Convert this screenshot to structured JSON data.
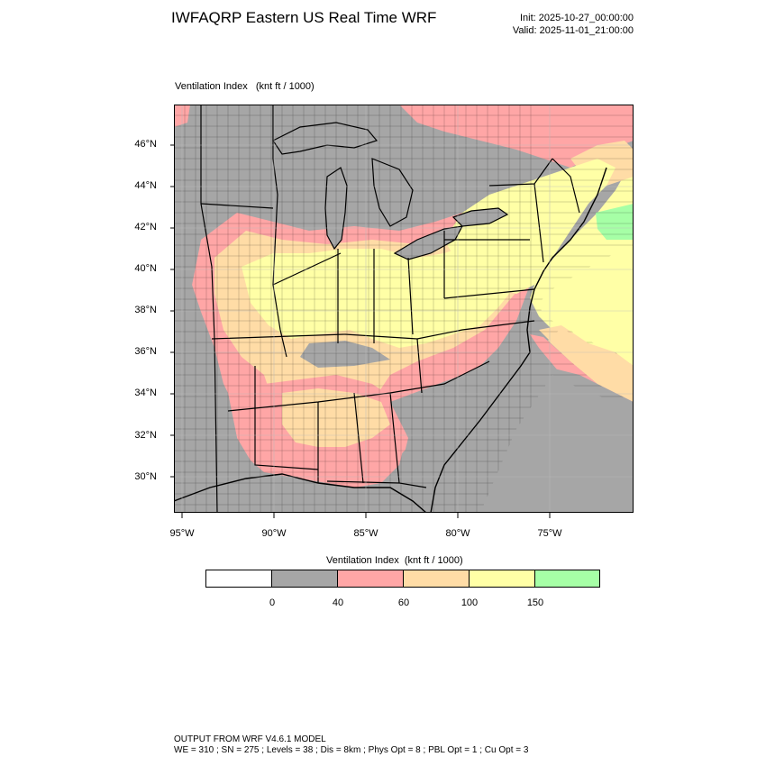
{
  "header": {
    "title": "IWFAQRP Eastern US Real Time WRF",
    "init": "Init: 2025-10-27_00:00:00",
    "valid": "Valid: 2025-11-01_21:00:00"
  },
  "plot": {
    "field_label": "Ventilation Index   (knt ft / 1000)",
    "lat_labels": [
      "46°N",
      "44°N",
      "42°N",
      "40°N",
      "38°N",
      "36°N",
      "34°N",
      "32°N",
      "30°N"
    ],
    "lon_labels": [
      "95°W",
      "90°W",
      "85°W",
      "80°W",
      "75°W"
    ]
  },
  "colorbar": {
    "title": "Ventilation Index  (knt ft / 1000)",
    "labels": [
      "0",
      "40",
      "60",
      "100",
      "150"
    ],
    "colors": [
      "#ffffff",
      "#a6a6a6",
      "#ffa6a6",
      "#ffdca6",
      "#ffffa6",
      "#a6ffa6"
    ]
  },
  "map_colors": {
    "water": "#a6a6a6",
    "land_low": "#a6a6a6",
    "pink": "#ffa6a6",
    "orange": "#ffdca6",
    "yellow": "#ffffa6",
    "green": "#a6ffa6"
  },
  "footer": {
    "line1": "OUTPUT FROM WRF V4.6.1 MODEL",
    "line2": "WE = 310 ; SN = 275 ; Levels = 38 ; Dis = 8km ; Phys Opt = 8 ; PBL Opt = 1 ; Cu Opt = 3"
  }
}
